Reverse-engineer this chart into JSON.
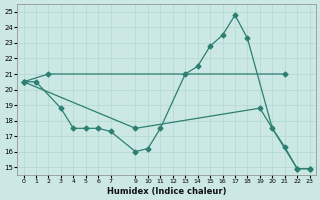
{
  "xlabel": "Humidex (Indice chaleur)",
  "bg_color": "#cce8e4",
  "line_color": "#2d7f72",
  "grid_color": "#b0d8d0",
  "xlim": [
    -0.5,
    23.5
  ],
  "ylim": [
    14.5,
    25.5
  ],
  "yticks": [
    15,
    16,
    17,
    18,
    19,
    20,
    21,
    22,
    23,
    24,
    25
  ],
  "xtick_vals": [
    0,
    1,
    2,
    3,
    4,
    5,
    6,
    7,
    9,
    10,
    11,
    12,
    13,
    14,
    15,
    16,
    17,
    18,
    19,
    20,
    21,
    22,
    23
  ],
  "line1_x": [
    0,
    2,
    21
  ],
  "line1_y": [
    20.5,
    21.0,
    21.0
  ],
  "line2_x": [
    0,
    1,
    3,
    4,
    5,
    6,
    7,
    9,
    10,
    11,
    13,
    14,
    15,
    16,
    17,
    18,
    20,
    21,
    22,
    23
  ],
  "line2_y": [
    20.5,
    20.5,
    18.8,
    17.5,
    17.5,
    17.5,
    17.3,
    16.0,
    16.2,
    17.5,
    21.0,
    21.5,
    22.8,
    23.5,
    24.8,
    23.3,
    17.5,
    16.3,
    14.9,
    14.9
  ],
  "line3_x": [
    0,
    9,
    19,
    22,
    23
  ],
  "line3_y": [
    20.5,
    17.5,
    18.8,
    14.9,
    14.9
  ]
}
